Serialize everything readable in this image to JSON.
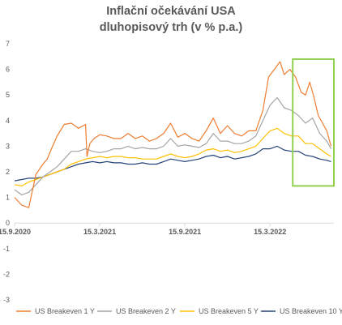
{
  "chart_data": {
    "type": "line",
    "title_line1": "Inflační očekávání USA",
    "title_line2": "dluhopisový trh (v % p.a.)",
    "ylim": [
      -3,
      7
    ],
    "yticks": [
      7,
      6,
      5,
      4,
      3,
      2,
      1,
      0,
      -1,
      -2,
      -3
    ],
    "x_tick_labels": [
      "15.9.2020",
      "15.3.2021",
      "15.9.2021",
      "15.3.2022"
    ],
    "x_tick_index": [
      0,
      6,
      12,
      18
    ],
    "x_range_months": [
      0,
      22.5
    ],
    "grid": false,
    "legend_position": "bottom",
    "highlight_box": {
      "x_from_month": 19.6,
      "x_to_month": 22.5,
      "y_from": 1.45,
      "y_to": 6.4,
      "color": "#92d050"
    },
    "series": [
      {
        "name": "US Breakeven 1 Y",
        "color": "#ed7d31",
        "x": [
          0,
          0.5,
          1,
          1.5,
          2,
          2.3,
          2.6,
          3,
          3.5,
          4,
          4.5,
          5,
          5.1,
          5.3,
          5.6,
          6,
          6.5,
          7,
          7.5,
          8,
          8.5,
          9,
          9.5,
          10,
          10.5,
          11,
          11.5,
          12,
          12.5,
          13,
          13.5,
          14,
          14.5,
          15,
          15.5,
          16,
          16.5,
          17,
          17.5,
          17.9,
          18.3,
          18.7,
          19,
          19.4,
          19.8,
          20.2,
          20.5,
          20.8,
          21.1,
          21.4,
          21.7,
          22,
          22.3
        ],
        "values": [
          1.0,
          0.7,
          0.6,
          1.9,
          2.3,
          2.5,
          2.9,
          3.4,
          3.85,
          3.9,
          3.7,
          3.85,
          2.6,
          3.1,
          3.3,
          3.45,
          3.4,
          3.3,
          3.3,
          3.5,
          3.3,
          3.4,
          3.2,
          3.3,
          3.5,
          3.9,
          3.35,
          3.5,
          3.3,
          3.2,
          3.6,
          4.1,
          3.5,
          3.8,
          3.5,
          3.4,
          3.6,
          3.6,
          4.4,
          5.7,
          6.0,
          6.3,
          5.8,
          6.0,
          5.7,
          5.1,
          5.0,
          5.5,
          4.9,
          4.2,
          3.9,
          3.6,
          3.0
        ]
      },
      {
        "name": "US Breakeven 2 Y",
        "color": "#a5a5a5",
        "x": [
          0,
          0.5,
          1,
          1.5,
          2,
          2.5,
          3,
          3.5,
          4,
          4.5,
          5,
          5.5,
          6,
          6.5,
          7,
          7.5,
          8,
          8.5,
          9,
          9.5,
          10,
          10.5,
          11,
          11.5,
          12,
          12.5,
          13,
          13.5,
          14,
          14.5,
          15,
          15.5,
          16,
          16.5,
          17,
          17.5,
          18,
          18.5,
          19,
          19.5,
          20,
          20.5,
          21,
          21.5,
          22,
          22.3
        ],
        "values": [
          1.3,
          1.1,
          1.2,
          1.5,
          1.8,
          2.0,
          2.2,
          2.5,
          2.8,
          2.8,
          2.9,
          2.8,
          2.75,
          2.8,
          2.9,
          2.9,
          3.0,
          2.9,
          2.95,
          2.9,
          2.9,
          3.0,
          3.3,
          3.0,
          3.05,
          3.0,
          2.95,
          3.1,
          3.5,
          3.2,
          3.2,
          3.1,
          3.1,
          3.2,
          3.4,
          4.0,
          4.6,
          4.9,
          4.5,
          4.4,
          4.2,
          3.9,
          4.1,
          3.5,
          3.2,
          2.9
        ]
      },
      {
        "name": "US Breakeven 5 Y",
        "color": "#ffc000",
        "x": [
          0,
          0.5,
          1,
          1.5,
          2,
          2.5,
          3,
          3.5,
          4,
          4.5,
          5,
          5.5,
          6,
          6.5,
          7,
          7.5,
          8,
          8.5,
          9,
          9.5,
          10,
          10.5,
          11,
          11.5,
          12,
          12.5,
          13,
          13.5,
          14,
          14.5,
          15,
          15.5,
          16,
          16.5,
          17,
          17.5,
          18,
          18.5,
          19,
          19.5,
          20,
          20.5,
          21,
          21.5,
          22,
          22.3
        ],
        "values": [
          1.5,
          1.45,
          1.6,
          1.7,
          1.8,
          1.9,
          2.0,
          2.1,
          2.3,
          2.4,
          2.5,
          2.55,
          2.6,
          2.55,
          2.6,
          2.6,
          2.55,
          2.55,
          2.5,
          2.5,
          2.5,
          2.6,
          2.7,
          2.6,
          2.55,
          2.6,
          2.7,
          2.85,
          2.9,
          2.8,
          2.85,
          2.75,
          2.8,
          2.9,
          3.0,
          3.3,
          3.6,
          3.7,
          3.5,
          3.4,
          3.4,
          3.1,
          3.1,
          2.9,
          2.7,
          2.6
        ]
      },
      {
        "name": "US Breakeven 10 Y",
        "color": "#264478",
        "x": [
          0,
          0.5,
          1,
          1.5,
          2,
          2.5,
          3,
          3.5,
          4,
          4.5,
          5,
          5.5,
          6,
          6.5,
          7,
          7.5,
          8,
          8.5,
          9,
          9.5,
          10,
          10.5,
          11,
          11.5,
          12,
          12.5,
          13,
          13.5,
          14,
          14.5,
          15,
          15.5,
          16,
          16.5,
          17,
          17.5,
          18,
          18.5,
          19,
          19.5,
          20,
          20.5,
          21,
          21.5,
          22,
          22.3
        ],
        "values": [
          1.65,
          1.7,
          1.75,
          1.75,
          1.8,
          1.9,
          2.0,
          2.1,
          2.2,
          2.3,
          2.35,
          2.4,
          2.35,
          2.4,
          2.35,
          2.35,
          2.3,
          2.3,
          2.35,
          2.3,
          2.3,
          2.4,
          2.5,
          2.45,
          2.4,
          2.45,
          2.5,
          2.6,
          2.65,
          2.55,
          2.6,
          2.5,
          2.55,
          2.6,
          2.7,
          2.9,
          2.9,
          3.0,
          2.85,
          2.8,
          2.8,
          2.65,
          2.6,
          2.5,
          2.45,
          2.4
        ]
      }
    ]
  }
}
